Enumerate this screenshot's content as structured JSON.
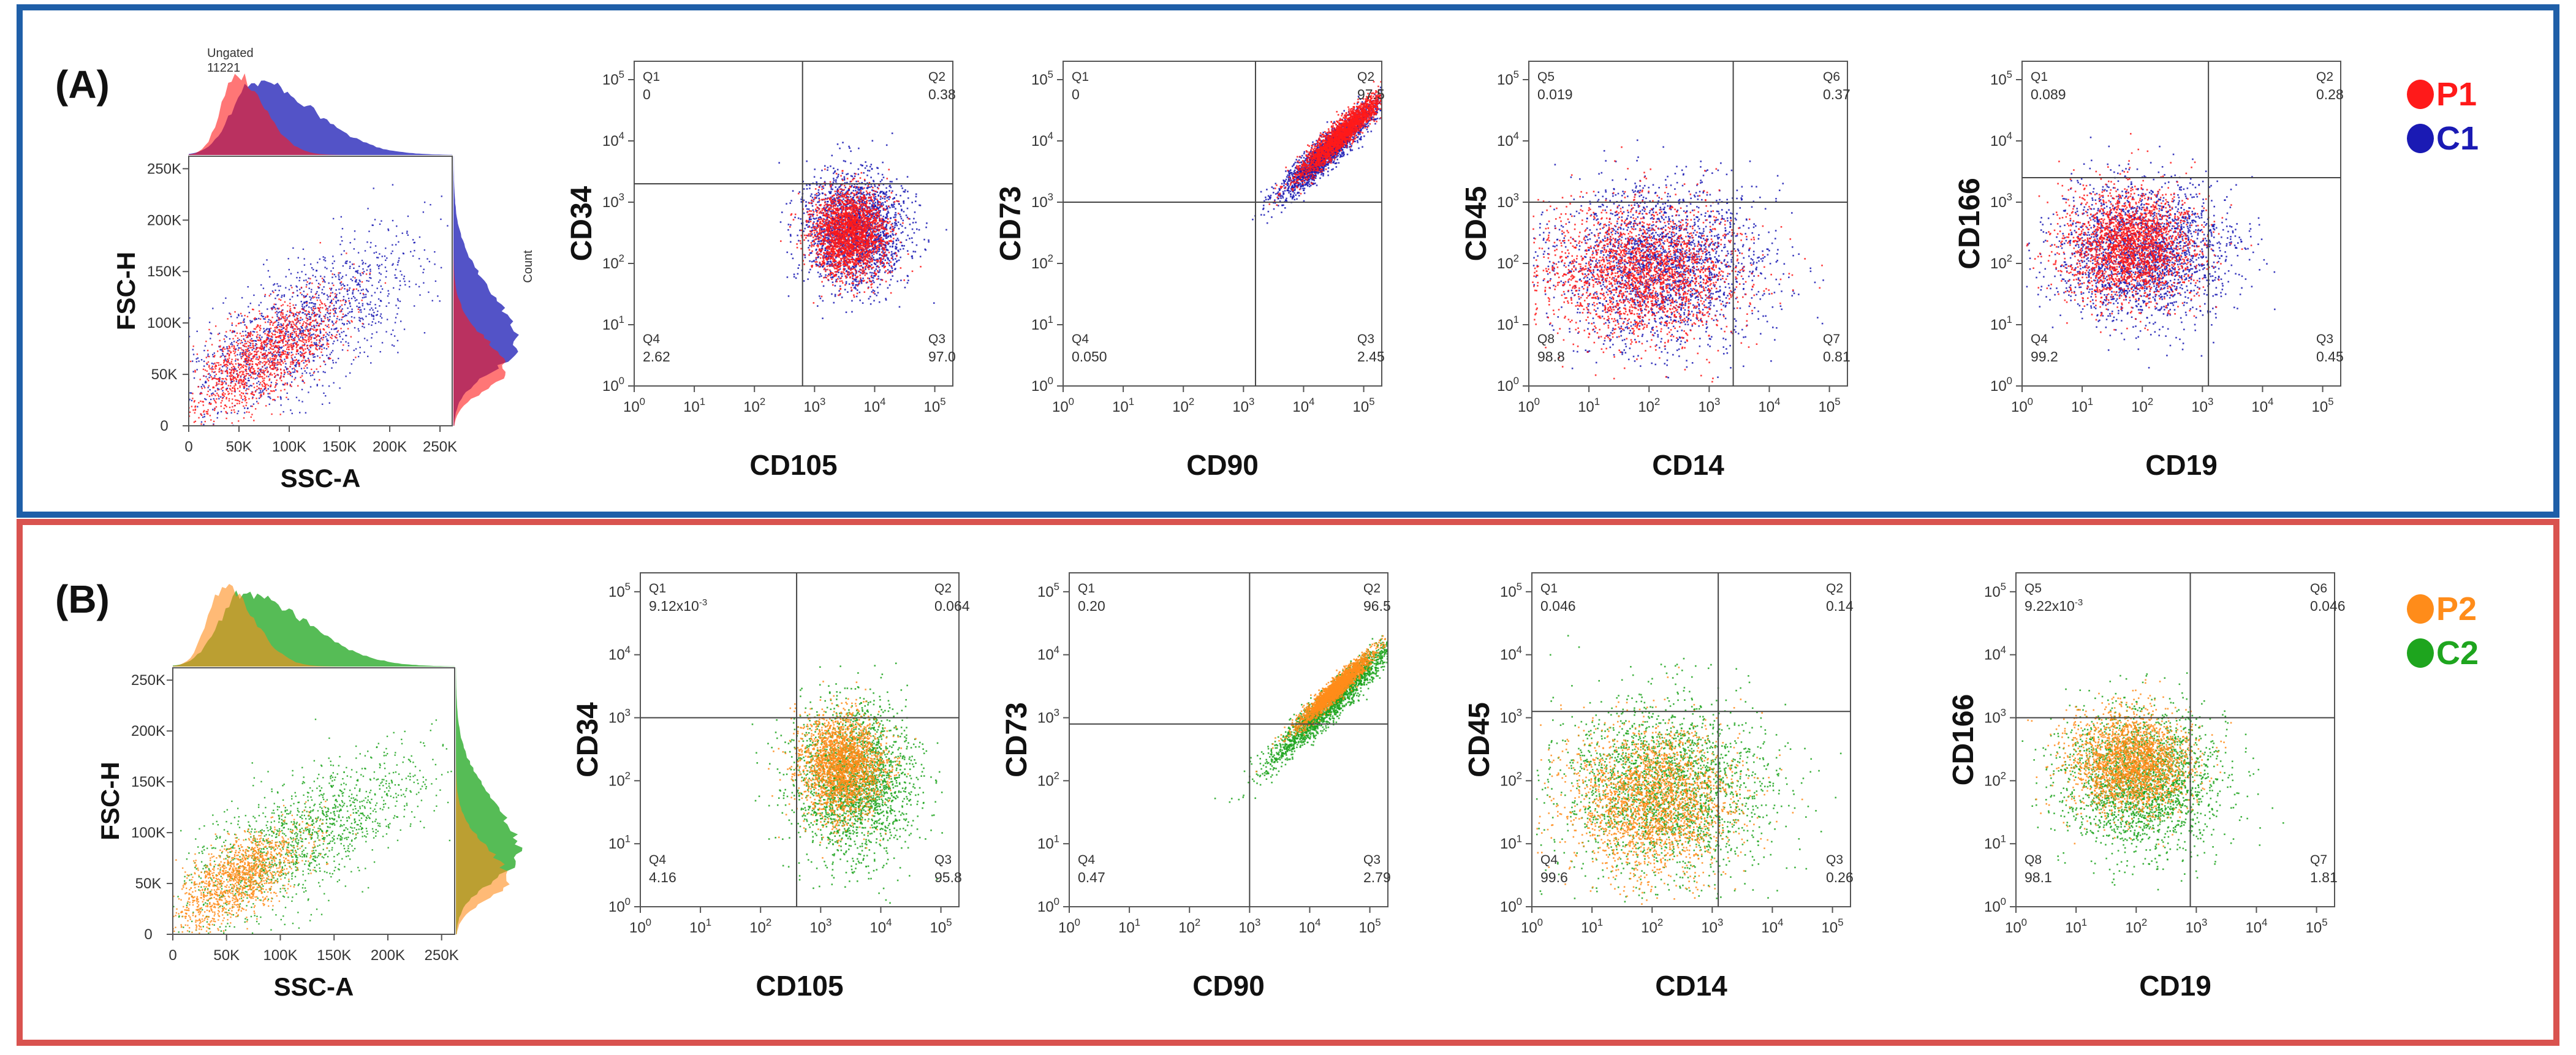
{
  "colors": {
    "panel_a_border": "#1F5FA8",
    "panel_b_border": "#D9534F",
    "P1": "#FF1A1A",
    "C1": "#1A1AB4",
    "P2": "#FF8C1A",
    "C2": "#1EA51E",
    "overlap_a": "#C2428A",
    "overlap_b": "#A5A12E"
  },
  "panels": [
    {
      "label": "(A)",
      "scatter_header": [
        "Ungated",
        "11221"
      ],
      "count_label": "Count",
      "legend": [
        {
          "name": "P1",
          "color": "#FF1A1A"
        },
        {
          "name": "C1",
          "color": "#1A1AB4"
        }
      ]
    },
    {
      "label": "(B)",
      "scatter_header": [],
      "count_label": "",
      "legend": [
        {
          "name": "P2",
          "color": "#FF8C1A"
        },
        {
          "name": "C2",
          "color": "#1EA51E"
        }
      ]
    }
  ],
  "chart_data": [
    {
      "id": "A-scatter",
      "panel": "A",
      "type": "scatter",
      "xlabel": "SSC-A",
      "ylabel": "FSC-H",
      "xticks": [
        "0",
        "50K",
        "100K",
        "150K",
        "200K",
        "250K"
      ],
      "yticks": [
        "0",
        "50K",
        "100K",
        "150K",
        "200K",
        "250K"
      ],
      "xlim": [
        0,
        262144
      ],
      "ylim": [
        0,
        262144
      ],
      "series": [
        {
          "name": "C1",
          "color": "#1A1AB4",
          "center": [
            110000,
            95000
          ],
          "spread": [
            60000,
            42000
          ]
        },
        {
          "name": "P1",
          "color": "#FF1A1A",
          "center": [
            75000,
            70000
          ],
          "spread": [
            38000,
            28000
          ]
        }
      ]
    },
    {
      "id": "A-CD34",
      "panel": "A",
      "type": "scatter",
      "xlabel": "CD105",
      "ylabel": "CD34",
      "xticks": [
        "10^0",
        "10^1",
        "10^2",
        "10^3",
        "10^4",
        "10^5"
      ],
      "yticks": [
        "10^0",
        "10^1",
        "10^2",
        "10^3",
        "10^4",
        "10^5"
      ],
      "xlim": [
        0,
        5.3
      ],
      "ylim": [
        0,
        5.3
      ],
      "gate": [
        2.8,
        3.3
      ],
      "quadrants": [
        {
          "name": "Q1",
          "value": "0",
          "pos": "tl"
        },
        {
          "name": "Q2",
          "value": "0.38",
          "pos": "tr"
        },
        {
          "name": "Q4",
          "value": "2.62",
          "pos": "bl"
        },
        {
          "name": "Q3",
          "value": "97.0",
          "pos": "br"
        }
      ],
      "series": [
        {
          "name": "C1",
          "color": "#1A1AB4",
          "center": [
            3.65,
            2.55
          ],
          "spread": [
            0.42,
            0.45
          ]
        },
        {
          "name": "P1",
          "color": "#FF1A1A",
          "center": [
            3.55,
            2.5
          ],
          "spread": [
            0.32,
            0.35
          ]
        }
      ]
    },
    {
      "id": "A-CD73",
      "panel": "A",
      "type": "scatter",
      "xlabel": "CD90",
      "ylabel": "CD73",
      "xticks": [
        "10^0",
        "10^1",
        "10^2",
        "10^3",
        "10^4",
        "10^5"
      ],
      "yticks": [
        "10^0",
        "10^1",
        "10^2",
        "10^3",
        "10^4",
        "10^5"
      ],
      "xlim": [
        0,
        5.3
      ],
      "ylim": [
        0,
        5.3
      ],
      "gate": [
        3.2,
        3.0
      ],
      "quadrants": [
        {
          "name": "Q1",
          "value": "0",
          "pos": "tl"
        },
        {
          "name": "Q2",
          "value": "97.5",
          "pos": "tr"
        },
        {
          "name": "Q4",
          "value": "0.050",
          "pos": "bl"
        },
        {
          "name": "Q3",
          "value": "2.45",
          "pos": "br"
        }
      ],
      "series": [
        {
          "name": "C1",
          "color": "#1A1AB4",
          "center": [
            4.4,
            3.85
          ],
          "spread": [
            0.4,
            0.4
          ],
          "diagonal": true
        },
        {
          "name": "P1",
          "color": "#FF1A1A",
          "center": [
            4.6,
            4.1
          ],
          "spread": [
            0.35,
            0.35
          ],
          "diagonal": true
        }
      ]
    },
    {
      "id": "A-CD45",
      "panel": "A",
      "type": "scatter",
      "xlabel": "CD14",
      "ylabel": "CD45",
      "xticks": [
        "10^0",
        "10^1",
        "10^2",
        "10^3",
        "10^4",
        "10^5"
      ],
      "yticks": [
        "10^0",
        "10^1",
        "10^2",
        "10^3",
        "10^4",
        "10^5"
      ],
      "xlim": [
        0,
        5.3
      ],
      "ylim": [
        0,
        5.3
      ],
      "gate": [
        3.4,
        3.0
      ],
      "quadrants": [
        {
          "name": "Q5",
          "value": "0.019",
          "pos": "tl"
        },
        {
          "name": "Q6",
          "value": "0.37",
          "pos": "tr"
        },
        {
          "name": "Q8",
          "value": "98.8",
          "pos": "bl"
        },
        {
          "name": "Q7",
          "value": "0.81",
          "pos": "br"
        }
      ],
      "series": [
        {
          "name": "C1",
          "color": "#1A1AB4",
          "center": [
            2.2,
            2.0
          ],
          "spread": [
            0.85,
            0.65
          ]
        },
        {
          "name": "P1",
          "color": "#FF1A1A",
          "center": [
            1.9,
            1.9
          ],
          "spread": [
            0.8,
            0.55
          ]
        }
      ]
    },
    {
      "id": "A-CD166",
      "panel": "A",
      "type": "scatter",
      "xlabel": "CD19",
      "ylabel": "CD166",
      "xticks": [
        "10^0",
        "10^1",
        "10^2",
        "10^3",
        "10^4",
        "10^5"
      ],
      "yticks": [
        "10^0",
        "10^1",
        "10^2",
        "10^3",
        "10^4",
        "10^5"
      ],
      "xlim": [
        0,
        5.3
      ],
      "ylim": [
        0,
        5.3
      ],
      "gate": [
        3.1,
        3.4
      ],
      "quadrants": [
        {
          "name": "Q1",
          "value": "0.089",
          "pos": "tl"
        },
        {
          "name": "Q2",
          "value": "0.28",
          "pos": "tr"
        },
        {
          "name": "Q4",
          "value": "99.2",
          "pos": "bl"
        },
        {
          "name": "Q3",
          "value": "0.45",
          "pos": "br"
        }
      ],
      "series": [
        {
          "name": "C1",
          "color": "#1A1AB4",
          "center": [
            2.0,
            2.2
          ],
          "spread": [
            0.7,
            0.55
          ]
        },
        {
          "name": "P1",
          "color": "#FF1A1A",
          "center": [
            1.8,
            2.3
          ],
          "spread": [
            0.55,
            0.45
          ]
        }
      ]
    },
    {
      "id": "B-scatter",
      "panel": "B",
      "type": "scatter",
      "xlabel": "SSC-A",
      "ylabel": "FSC-H",
      "xticks": [
        "0",
        "50K",
        "100K",
        "150K",
        "200K",
        "250K"
      ],
      "yticks": [
        "0",
        "50K",
        "100K",
        "150K",
        "200K",
        "250K"
      ],
      "xlim": [
        0,
        262144
      ],
      "ylim": [
        0,
        262144
      ],
      "series": [
        {
          "name": "C2",
          "color": "#1EA51E",
          "center": [
            120000,
            95000
          ],
          "spread": [
            60000,
            40000
          ]
        },
        {
          "name": "P2",
          "color": "#FF8C1A",
          "center": [
            60000,
            55000
          ],
          "spread": [
            32000,
            24000
          ]
        }
      ]
    },
    {
      "id": "B-CD34",
      "panel": "B",
      "type": "scatter",
      "xlabel": "CD105",
      "ylabel": "CD34",
      "xticks": [
        "10^0",
        "10^1",
        "10^2",
        "10^3",
        "10^4",
        "10^5"
      ],
      "yticks": [
        "10^0",
        "10^1",
        "10^2",
        "10^3",
        "10^4",
        "10^5"
      ],
      "xlim": [
        0,
        5.3
      ],
      "ylim": [
        0,
        5.3
      ],
      "gate": [
        2.6,
        3.0
      ],
      "quadrants": [
        {
          "name": "Q1",
          "value": "9.12x10",
          "sup": "-3",
          "pos": "tl"
        },
        {
          "name": "Q2",
          "value": "0.064",
          "pos": "tr"
        },
        {
          "name": "Q4",
          "value": "4.16",
          "pos": "bl"
        },
        {
          "name": "Q3",
          "value": "95.8",
          "pos": "br"
        }
      ],
      "series": [
        {
          "name": "C2",
          "color": "#1EA51E",
          "center": [
            3.55,
            2.0
          ],
          "spread": [
            0.5,
            0.6
          ]
        },
        {
          "name": "P2",
          "color": "#FF8C1A",
          "center": [
            3.35,
            2.25
          ],
          "spread": [
            0.35,
            0.4
          ]
        }
      ]
    },
    {
      "id": "B-CD73",
      "panel": "B",
      "type": "scatter",
      "xlabel": "CD90",
      "ylabel": "CD73",
      "xticks": [
        "10^0",
        "10^1",
        "10^2",
        "10^3",
        "10^4",
        "10^5"
      ],
      "yticks": [
        "10^0",
        "10^1",
        "10^2",
        "10^3",
        "10^4",
        "10^5"
      ],
      "xlim": [
        0,
        5.3
      ],
      "ylim": [
        0,
        5.3
      ],
      "gate": [
        3.0,
        2.9
      ],
      "quadrants": [
        {
          "name": "Q1",
          "value": "0.20",
          "pos": "tl"
        },
        {
          "name": "Q2",
          "value": "96.5",
          "pos": "tr"
        },
        {
          "name": "Q4",
          "value": "0.47",
          "pos": "bl"
        },
        {
          "name": "Q3",
          "value": "2.79",
          "pos": "br"
        }
      ],
      "series": [
        {
          "name": "C2",
          "color": "#1EA51E",
          "center": [
            4.4,
            3.3
          ],
          "spread": [
            0.55,
            0.4
          ],
          "diagonal": true
        },
        {
          "name": "P2",
          "color": "#FF8C1A",
          "center": [
            4.4,
            3.45
          ],
          "spread": [
            0.3,
            0.25
          ],
          "diagonal": true
        }
      ]
    },
    {
      "id": "B-CD45",
      "panel": "B",
      "type": "scatter",
      "xlabel": "CD14",
      "ylabel": "CD45",
      "xticks": [
        "10^0",
        "10^1",
        "10^2",
        "10^3",
        "10^4",
        "10^5"
      ],
      "yticks": [
        "10^0",
        "10^1",
        "10^2",
        "10^3",
        "10^4",
        "10^5"
      ],
      "xlim": [
        0,
        5.3
      ],
      "ylim": [
        0,
        5.3
      ],
      "gate": [
        3.1,
        3.1
      ],
      "quadrants": [
        {
          "name": "Q1",
          "value": "0.046",
          "pos": "tl"
        },
        {
          "name": "Q2",
          "value": "0.14",
          "pos": "tr"
        },
        {
          "name": "Q4",
          "value": "99.6",
          "pos": "bl"
        },
        {
          "name": "Q3",
          "value": "0.26",
          "pos": "br"
        }
      ],
      "series": [
        {
          "name": "C2",
          "color": "#1EA51E",
          "center": [
            2.2,
            1.9
          ],
          "spread": [
            0.85,
            0.7
          ]
        },
        {
          "name": "P2",
          "color": "#FF8C1A",
          "center": [
            2.0,
            1.7
          ],
          "spread": [
            0.7,
            0.6
          ]
        }
      ]
    },
    {
      "id": "B-CD166",
      "panel": "B",
      "type": "scatter",
      "xlabel": "CD19",
      "ylabel": "CD166",
      "xticks": [
        "10^0",
        "10^1",
        "10^2",
        "10^3",
        "10^4",
        "10^5"
      ],
      "yticks": [
        "10^0",
        "10^1",
        "10^2",
        "10^3",
        "10^4",
        "10^5"
      ],
      "xlim": [
        0,
        5.3
      ],
      "ylim": [
        0,
        5.3
      ],
      "gate": [
        2.9,
        3.0
      ],
      "quadrants": [
        {
          "name": "Q5",
          "value": "9.22x10",
          "sup": "-3",
          "pos": "tl"
        },
        {
          "name": "Q6",
          "value": "0.046",
          "pos": "tr"
        },
        {
          "name": "Q8",
          "value": "98.1",
          "pos": "bl"
        },
        {
          "name": "Q7",
          "value": "1.81",
          "pos": "br"
        }
      ],
      "series": [
        {
          "name": "C2",
          "color": "#1EA51E",
          "center": [
            2.1,
            2.0
          ],
          "spread": [
            0.65,
            0.55
          ]
        },
        {
          "name": "P2",
          "color": "#FF8C1A",
          "center": [
            1.9,
            2.3
          ],
          "spread": [
            0.5,
            0.4
          ]
        }
      ]
    }
  ]
}
